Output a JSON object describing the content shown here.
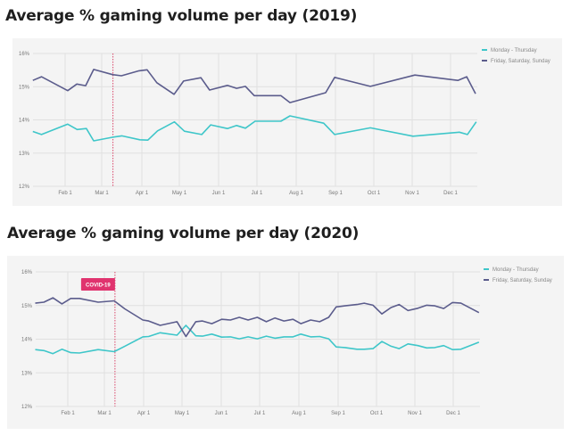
{
  "chart_data": [
    {
      "type": "line",
      "title": "Average % gaming volume per day (2019)",
      "xlabel": "",
      "ylabel": "",
      "x_unit": "month (1 = Jan 1)",
      "xlim": [
        1.0,
        12.7
      ],
      "ylim": [
        12,
        16
      ],
      "y_ticks": [
        16,
        15,
        14,
        13,
        12
      ],
      "y_tick_labels": [
        "16%",
        "15%",
        "14%",
        "13%",
        "12%"
      ],
      "x_ticks": [
        2,
        3,
        4,
        5,
        6,
        7,
        8,
        9,
        10,
        11,
        12
      ],
      "x_tick_labels": [
        "Feb 1",
        "Mar 1",
        "Apr 1",
        "May 1",
        "Jun 1",
        "Jul 1",
        "Aug 1",
        "Sep 1",
        "Oct 1",
        "Nov 1",
        "Dec 1"
      ],
      "grid": true,
      "legend_position": "top-right",
      "marker_line_x": 3.28,
      "series": [
        {
          "name": "Monday - Thursday",
          "color": "#3ec6c9",
          "x": [
            1.18,
            1.4,
            2.07,
            2.33,
            2.58,
            2.78,
            3.28,
            3.5,
            3.95,
            4.16,
            4.42,
            4.87,
            5.13,
            5.57,
            5.8,
            6.23,
            6.47,
            6.7,
            6.95,
            7.61,
            7.84,
            8.7,
            8.98,
            9.91,
            11.02,
            12.23,
            12.44,
            12.67
          ],
          "values": [
            13.65,
            13.56,
            13.87,
            13.71,
            13.74,
            13.37,
            13.48,
            13.52,
            13.4,
            13.39,
            13.67,
            13.94,
            13.66,
            13.56,
            13.85,
            13.74,
            13.83,
            13.75,
            13.96,
            13.96,
            14.12,
            13.9,
            13.56,
            13.76,
            13.51,
            13.63,
            13.56,
            13.94
          ]
        },
        {
          "name": "Friday, Saturday, Sunday",
          "color": "#5b5c8c",
          "x": [
            1.18,
            1.4,
            2.07,
            2.32,
            2.56,
            2.78,
            3.28,
            3.49,
            3.93,
            4.14,
            4.4,
            4.86,
            5.11,
            5.55,
            5.77,
            6.23,
            6.47,
            6.7,
            6.93,
            7.61,
            7.84,
            8.75,
            8.98,
            9.91,
            11.07,
            12.19,
            12.42,
            12.65
          ],
          "values": [
            15.19,
            15.3,
            14.88,
            15.08,
            15.03,
            15.52,
            15.36,
            15.33,
            15.48,
            15.51,
            15.12,
            14.77,
            15.17,
            15.27,
            14.9,
            15.04,
            14.95,
            15.01,
            14.73,
            14.73,
            14.52,
            14.82,
            15.28,
            15.01,
            15.35,
            15.19,
            15.3,
            14.79
          ]
        }
      ]
    },
    {
      "type": "line",
      "title": "Average % gaming volume per day (2020)",
      "xlabel": "",
      "ylabel": "",
      "x_unit": "month (1 = Jan 1)",
      "xlim": [
        1.0,
        12.7
      ],
      "ylim": [
        12,
        16
      ],
      "y_ticks": [
        16,
        15,
        14,
        13,
        12
      ],
      "y_tick_labels": [
        "16%",
        "15%",
        "14%",
        "13%",
        "12%"
      ],
      "x_ticks": [
        2,
        3,
        4,
        5,
        6,
        7,
        8,
        9,
        10,
        11,
        12
      ],
      "x_tick_labels": [
        "Feb 1",
        "Mar 1",
        "Apr 1",
        "May 1",
        "Jun 1",
        "Jul 1",
        "Aug 1",
        "Sep 1",
        "Oct 1",
        "Nov 1",
        "Dec 1"
      ],
      "grid": true,
      "legend_position": "top-right",
      "marker_line_x": 3.27,
      "annotation": {
        "text": "COVID-19",
        "x": 3.27,
        "color": "#e0336e"
      },
      "series": [
        {
          "name": "Monday - Thursday",
          "color": "#3ec6c9",
          "x": [
            1.17,
            1.39,
            1.62,
            1.85,
            2.08,
            2.32,
            2.83,
            3.25,
            3.52,
            3.98,
            4.13,
            4.43,
            4.87,
            5.1,
            5.35,
            5.52,
            5.76,
            6.01,
            6.24,
            6.47,
            6.7,
            6.94,
            7.17,
            7.39,
            7.62,
            7.85,
            8.05,
            8.3,
            8.53,
            8.76,
            8.95,
            9.18,
            9.49,
            9.68,
            9.91,
            10.14,
            10.38,
            10.59,
            10.82,
            11.08,
            11.31,
            11.52,
            11.75,
            11.98,
            12.2,
            12.67
          ],
          "values": [
            13.69,
            13.66,
            13.57,
            13.7,
            13.6,
            13.59,
            13.69,
            13.63,
            13.79,
            14.07,
            14.08,
            14.19,
            14.12,
            14.41,
            14.1,
            14.09,
            14.15,
            14.06,
            14.07,
            14.01,
            14.07,
            14.01,
            14.09,
            14.03,
            14.07,
            14.07,
            14.15,
            14.07,
            14.08,
            14.01,
            13.77,
            13.75,
            13.7,
            13.7,
            13.72,
            13.93,
            13.79,
            13.72,
            13.86,
            13.81,
            13.74,
            13.75,
            13.81,
            13.69,
            13.7,
            13.91
          ]
        },
        {
          "name": "Friday, Saturday, Sunday",
          "color": "#5b5c8c",
          "x": [
            1.17,
            1.39,
            1.62,
            1.85,
            2.08,
            2.32,
            2.83,
            3.25,
            3.52,
            3.98,
            4.13,
            4.43,
            4.87,
            5.1,
            5.35,
            5.52,
            5.76,
            6.01,
            6.24,
            6.47,
            6.7,
            6.94,
            7.17,
            7.39,
            7.62,
            7.85,
            8.05,
            8.3,
            8.53,
            8.76,
            8.95,
            9.18,
            9.49,
            9.68,
            9.91,
            10.14,
            10.38,
            10.59,
            10.82,
            11.08,
            11.31,
            11.52,
            11.75,
            11.98,
            12.2,
            12.67
          ],
          "values": [
            15.07,
            15.1,
            15.23,
            15.05,
            15.21,
            15.21,
            15.1,
            15.14,
            14.9,
            14.57,
            14.54,
            14.41,
            14.52,
            14.08,
            14.52,
            14.54,
            14.46,
            14.59,
            14.57,
            14.65,
            14.57,
            14.65,
            14.52,
            14.63,
            14.54,
            14.59,
            14.46,
            14.57,
            14.52,
            14.65,
            14.96,
            14.99,
            15.03,
            15.07,
            15.01,
            14.75,
            14.94,
            15.03,
            14.85,
            14.92,
            15.01,
            14.99,
            14.91,
            15.09,
            15.07,
            14.79
          ]
        }
      ]
    }
  ]
}
